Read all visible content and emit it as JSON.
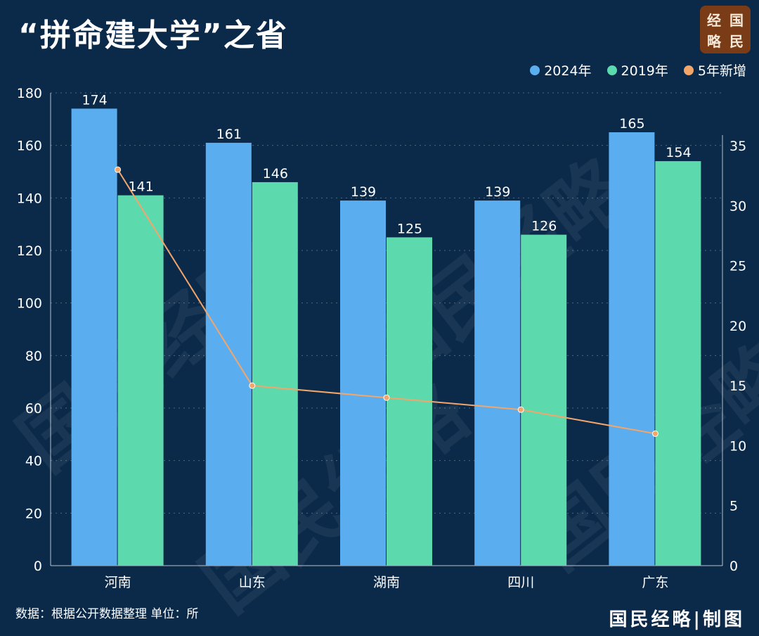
{
  "title": "“拼命建大学”之省",
  "logo": {
    "chars": [
      "经",
      "国",
      "略",
      "民"
    ]
  },
  "watermark": "国民经略",
  "source": "数据：根据公开数据整理 单位：所",
  "credit": "国民经略|制图",
  "legend": [
    {
      "label": "2024年",
      "color": "#5aaef0"
    },
    {
      "label": "2019年",
      "color": "#5dd9ae"
    },
    {
      "label": "5年新增",
      "color": "#f3a56a"
    }
  ],
  "chart_data": {
    "type": "bar",
    "categories": [
      "河南",
      "山东",
      "湖南",
      "四川",
      "广东"
    ],
    "series": [
      {
        "name": "2024年",
        "values": [
          174,
          161,
          139,
          139,
          165
        ],
        "color": "#5aaef0",
        "labels": [
          "174",
          "161",
          "139",
          "139",
          "165"
        ]
      },
      {
        "name": "2019年",
        "values": [
          141,
          146,
          125,
          126,
          154
        ],
        "color": "#5dd9ae",
        "labels": [
          "141",
          "146",
          "125",
          "126",
          "154"
        ]
      },
      {
        "name": "5年新增",
        "type": "line",
        "axis": "right",
        "values": [
          33,
          15,
          14,
          13,
          11
        ],
        "color": "#f3a56a"
      }
    ],
    "y_left": {
      "min": 0,
      "max": 180,
      "ticks": [
        0,
        20,
        40,
        60,
        80,
        100,
        120,
        140,
        160,
        180
      ]
    },
    "y_right": {
      "min": 0,
      "max": 39.4,
      "ticks": [
        0,
        5,
        10,
        15,
        20,
        25,
        30,
        35
      ]
    },
    "grid": "dotted horizontal",
    "legend_position": "top-right"
  }
}
